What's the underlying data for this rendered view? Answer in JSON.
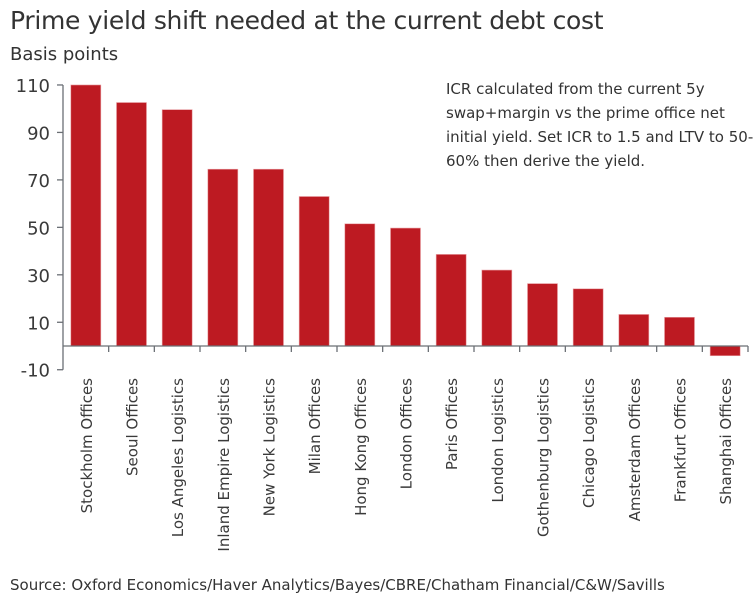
{
  "chart_data": {
    "type": "bar",
    "title": "Prime yield shift needed at the current debt cost",
    "ylabel": "Basis points",
    "xlabel": "",
    "annotation": "ICR calculated from the current 5y swap+margin vs the prime office net initial yield. Set ICR to 1.5 and LTV to 50-60% then derive the yield.",
    "source": "Source: Oxford Economics/Haver Analytics/Bayes/CBRE/Chatham Financial/C&W/Savills",
    "categories": [
      "Stockholm Offices",
      "Seoul Offices",
      "Los Angeles Logistics",
      "Inland Empire Logistics",
      "New York Logistics",
      "Milan Offices",
      "Hong Kong Offices",
      "London Offices",
      "Paris Offices",
      "London Logistics",
      "Gothenburg Logistics",
      "Chicago Logistics",
      "Amsterdam Offices",
      "Frankfurt Offices",
      "Shanghai Offices"
    ],
    "values": [
      110,
      102.6,
      99.6,
      74.5,
      74.5,
      63,
      51.5,
      49.7,
      38.6,
      32,
      26.3,
      24.1,
      13.3,
      12.1,
      -4.1
    ],
    "yticks": [
      110,
      90,
      70,
      50,
      30,
      10,
      -10
    ],
    "ylim": [
      -10,
      110
    ],
    "grid": false,
    "bar_color": "#bd1a22"
  }
}
